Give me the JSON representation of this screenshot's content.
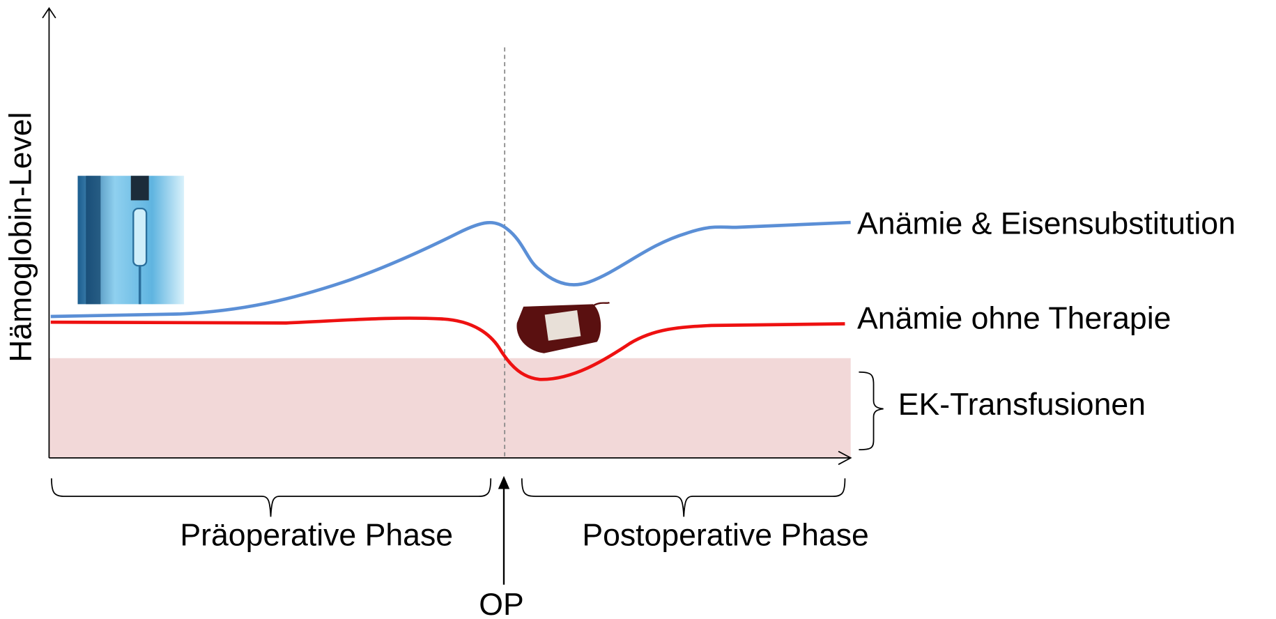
{
  "axis_label": "Hämoglobin-Level",
  "series": [
    {
      "label": "Anämie & Eisensubstitution"
    },
    {
      "label": "Anämie ohne Therapie"
    }
  ],
  "zone": {
    "label": "EK-Transfusionen"
  },
  "phases": [
    {
      "label": "Präoperative Phase"
    },
    {
      "label": "Postoperative Phase"
    }
  ],
  "event": {
    "label": "OP"
  }
}
